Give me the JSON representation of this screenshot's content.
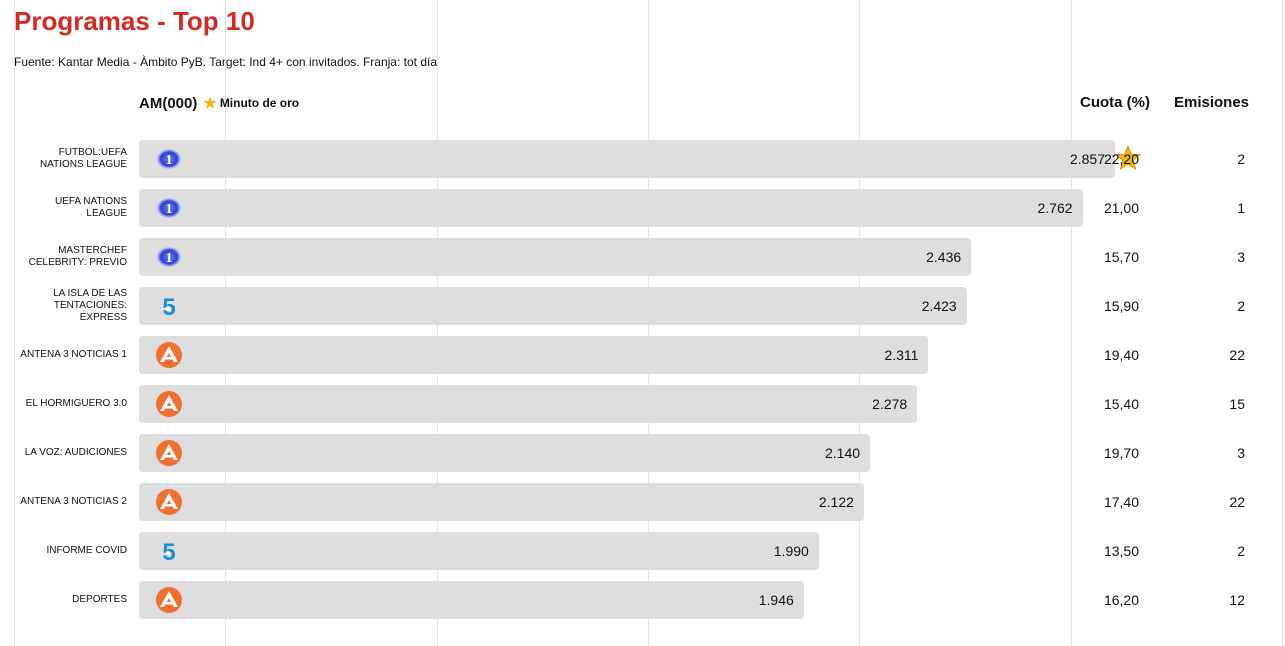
{
  "title": "Programas - Top 10",
  "source": "Fuente: Kantar Media - Àmbito PyB. Target: Ind 4+ con invitados. Franja: tot día",
  "headers": {
    "am": "AM(000)",
    "minuto_oro": "Minuto de oro",
    "cuota": "Cuota (%)",
    "emisiones": "Emisiones"
  },
  "colors": {
    "title": "#d42a24",
    "bar": "#dedede",
    "star": "#f2b705",
    "la1": "#2a3fd1",
    "t5": "#1a8fd6",
    "a3": "#f07030"
  },
  "chart_data": {
    "type": "bar",
    "orientation": "horizontal",
    "title": "Programas - Top 10",
    "xlabel": "AM(000)",
    "categories": [
      "FUTBOL:UEFA NATIONS LEAGUE",
      "UEFA NATIONS LEAGUE",
      "MASTERCHEF CELEBRITY: PREVIO",
      "LA ISLA DE LAS TENTACIONES: EXPRESS",
      "ANTENA 3 NOTICIAS 1",
      "EL HORMIGUERO 3.0",
      "LA VOZ: AUDICIONES",
      "ANTENA 3 NOTICIAS 2",
      "INFORME COVID",
      "DEPORTES"
    ],
    "values": [
      2857,
      2762,
      2436,
      2423,
      2311,
      2278,
      2140,
      2122,
      1990,
      1946
    ],
    "value_labels": [
      "2.857",
      "2.762",
      "2.436",
      "2.423",
      "2.311",
      "2.278",
      "2.140",
      "2.122",
      "1.990",
      "1.946"
    ],
    "xlim": [
      0,
      3000
    ],
    "grid": true,
    "rows": [
      {
        "label": "FUTBOL:UEFA NATIONS LEAGUE",
        "channel": "la1",
        "value": 2857,
        "display": "2.857",
        "cuota": "22,20",
        "emisiones": "2",
        "minuto_oro": true
      },
      {
        "label": "UEFA NATIONS LEAGUE",
        "channel": "la1",
        "value": 2762,
        "display": "2.762",
        "cuota": "21,00",
        "emisiones": "1",
        "minuto_oro": false
      },
      {
        "label": "MASTERCHEF CELEBRITY: PREVIO",
        "channel": "la1",
        "value": 2436,
        "display": "2.436",
        "cuota": "15,70",
        "emisiones": "3",
        "minuto_oro": false
      },
      {
        "label": "LA ISLA DE LAS TENTACIONES: EXPRESS",
        "channel": "t5",
        "value": 2423,
        "display": "2.423",
        "cuota": "15,90",
        "emisiones": "2",
        "minuto_oro": false
      },
      {
        "label": "ANTENA 3 NOTICIAS 1",
        "channel": "a3",
        "value": 2311,
        "display": "2.311",
        "cuota": "19,40",
        "emisiones": "22",
        "minuto_oro": false
      },
      {
        "label": "EL HORMIGUERO 3.0",
        "channel": "a3",
        "value": 2278,
        "display": "2.278",
        "cuota": "15,40",
        "emisiones": "15",
        "minuto_oro": false
      },
      {
        "label": "LA VOZ: AUDICIONES",
        "channel": "a3",
        "value": 2140,
        "display": "2.140",
        "cuota": "19,70",
        "emisiones": "3",
        "minuto_oro": false
      },
      {
        "label": "ANTENA 3 NOTICIAS 2",
        "channel": "a3",
        "value": 2122,
        "display": "2.122",
        "cuota": "17,40",
        "emisiones": "22",
        "minuto_oro": false
      },
      {
        "label": "INFORME COVID",
        "channel": "t5",
        "value": 1990,
        "display": "1.990",
        "cuota": "13,50",
        "emisiones": "2",
        "minuto_oro": false
      },
      {
        "label": "DEPORTES",
        "channel": "a3",
        "value": 1946,
        "display": "1.946",
        "cuota": "16,20",
        "emisiones": "12",
        "minuto_oro": false
      }
    ]
  }
}
